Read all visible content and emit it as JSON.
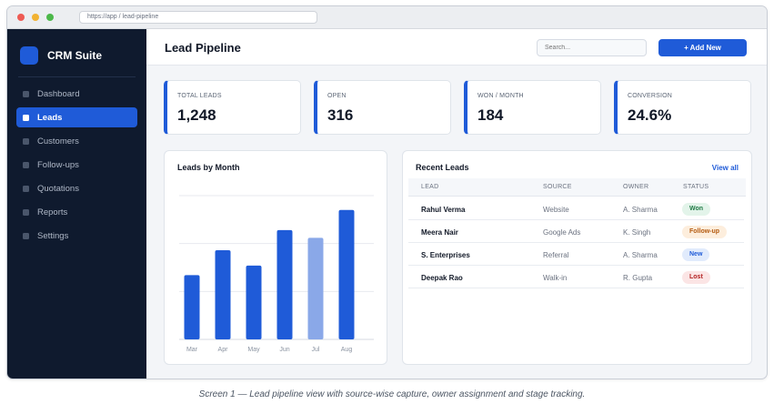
{
  "browser": {
    "url": "https://app  /  lead-pipeline"
  },
  "sidebar": {
    "brand": "CRM Suite",
    "items": [
      {
        "label": "Dashboard",
        "active": false
      },
      {
        "label": "Leads",
        "active": true
      },
      {
        "label": "Customers",
        "active": false
      },
      {
        "label": "Follow-ups",
        "active": false
      },
      {
        "label": "Quotations",
        "active": false
      },
      {
        "label": "Reports",
        "active": false
      },
      {
        "label": "Settings",
        "active": false
      }
    ]
  },
  "header": {
    "title": "Lead Pipeline",
    "search_placeholder": "Search...",
    "add_button": "+  Add New"
  },
  "kpis": [
    {
      "label": "TOTAL LEADS",
      "value": "1,248"
    },
    {
      "label": "OPEN",
      "value": "316"
    },
    {
      "label": "WON / MONTH",
      "value": "184"
    },
    {
      "label": "CONVERSION",
      "value": "24.6%"
    }
  ],
  "chart_data": {
    "type": "bar",
    "title": "Leads by Month",
    "categories": [
      "Mar",
      "Apr",
      "May",
      "Jun",
      "Jul",
      "Aug"
    ],
    "values": [
      67,
      93,
      77,
      114,
      106,
      135
    ],
    "highlight": "Jul",
    "colors": {
      "bar": "#1f5bd8",
      "highlight": "#8aa8e8"
    },
    "ylim": [
      0,
      150
    ],
    "grid": true
  },
  "recent_leads": {
    "title": "Recent Leads",
    "view_all": "View all",
    "columns": [
      "LEAD",
      "SOURCE",
      "OWNER",
      "STATUS"
    ],
    "rows": [
      {
        "lead": "Rahul Verma",
        "source": "Website",
        "owner": "A. Sharma",
        "status": "Won",
        "status_bg": "#e3f4ea",
        "status_fg": "#1f7a44"
      },
      {
        "lead": "Meera Nair",
        "source": "Google Ads",
        "owner": "K. Singh",
        "status": "Follow-up",
        "status_bg": "#fdeedd",
        "status_fg": "#b45a0f"
      },
      {
        "lead": "S. Enterprises",
        "source": "Referral",
        "owner": "A. Sharma",
        "status": "New",
        "status_bg": "#e1ebfc",
        "status_fg": "#1f5bd8"
      },
      {
        "lead": "Deepak Rao",
        "source": "Walk-in",
        "owner": "R. Gupta",
        "status": "Lost",
        "status_bg": "#fbe5e5",
        "status_fg": "#b42323"
      }
    ]
  },
  "caption": "Screen 1 — Lead pipeline view with source-wise capture, owner assignment and stage tracking."
}
